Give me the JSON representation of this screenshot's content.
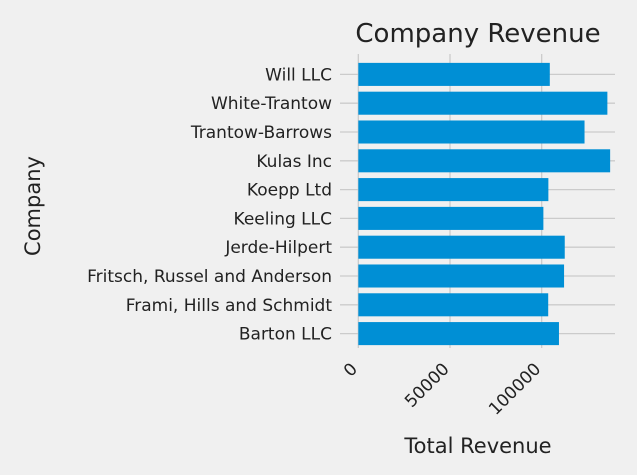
{
  "chart_data": {
    "type": "bar",
    "orientation": "horizontal",
    "title": "Company Revenue",
    "xlabel": "Total Revenue",
    "ylabel": "Company",
    "categories": [
      "Barton LLC",
      "Frami, Hills and Schmidt",
      "Fritsch, Russel and Anderson",
      "Jerde-Hilpert",
      "Keeling LLC",
      "Koepp Ltd",
      "Kulas Inc",
      "Trantow-Barrows",
      "White-Trantow",
      "Will LLC"
    ],
    "values": [
      109438,
      103569,
      112214,
      112591,
      100934,
      103660,
      137351,
      123381,
      135841,
      104437
    ],
    "xlim": [
      -10000,
      140000
    ],
    "xticks": [
      0,
      50000,
      100000
    ],
    "xtick_labels": [
      "0",
      "50000",
      "100000"
    ],
    "grid": true,
    "bar_color": "#008fd5"
  }
}
